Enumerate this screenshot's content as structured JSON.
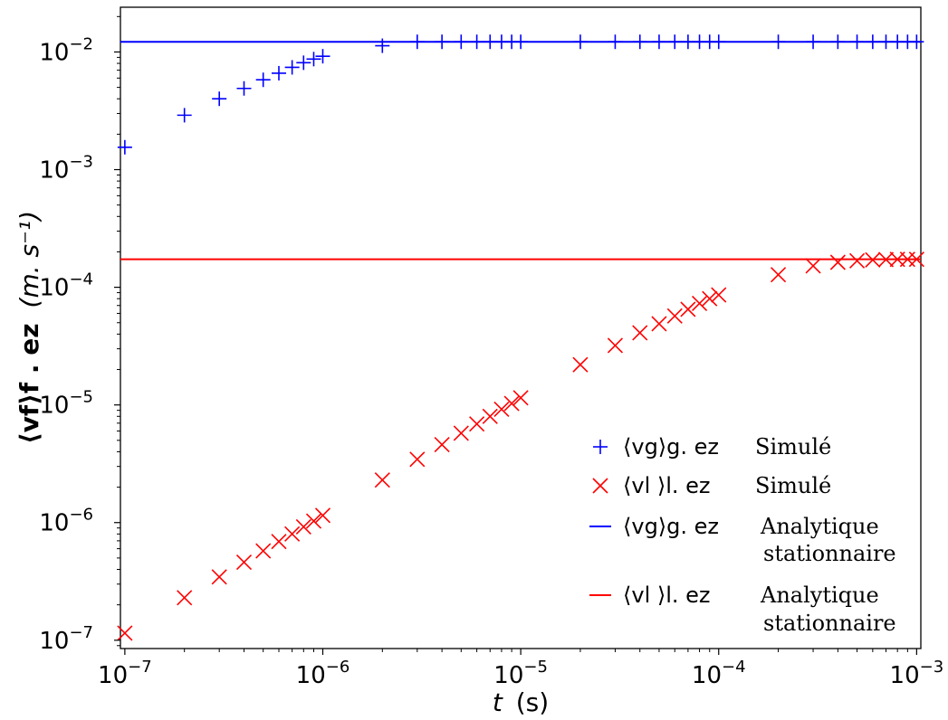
{
  "chart_data": {
    "type": "scatter",
    "xscale": "log",
    "yscale": "log",
    "xlim": [
      9.5e-08,
      0.00105
    ],
    "ylim": [
      8.5e-08,
      0.024
    ],
    "xlabel_var": "t",
    "xlabel_unit": "(s)",
    "ylabel_lhs": "⟨vf⟩f . ez",
    "ylabel_unit": "(m. s⁻¹)",
    "x_ticks": [
      {
        "value": 1e-07,
        "base": "10",
        "exp": "−7"
      },
      {
        "value": 1e-06,
        "base": "10",
        "exp": "−6"
      },
      {
        "value": 1e-05,
        "base": "10",
        "exp": "−5"
      },
      {
        "value": 0.0001,
        "base": "10",
        "exp": "−4"
      },
      {
        "value": 0.001,
        "base": "10",
        "exp": "−3"
      }
    ],
    "y_ticks": [
      {
        "value": 1e-07,
        "base": "10",
        "exp": "−7"
      },
      {
        "value": 1e-06,
        "base": "10",
        "exp": "−6"
      },
      {
        "value": 1e-05,
        "base": "10",
        "exp": "−5"
      },
      {
        "value": 0.0001,
        "base": "10",
        "exp": "−4"
      },
      {
        "value": 0.001,
        "base": "10",
        "exp": "−3"
      },
      {
        "value": 0.01,
        "base": "10",
        "exp": "−2"
      }
    ],
    "series": [
      {
        "name": "⟨vg⟩g . ez Simulé",
        "label_math": "⟨vg⟩g. ez",
        "label_text": "Simulé",
        "kind": "marker",
        "marker": "plus",
        "color": "#0000ff",
        "x": [
          1e-07,
          2e-07,
          3e-07,
          4e-07,
          5e-07,
          6e-07,
          7e-07,
          8e-07,
          9e-07,
          1e-06,
          2e-06,
          3e-06,
          4e-06,
          5e-06,
          6e-06,
          7e-06,
          8e-06,
          9e-06,
          1e-05,
          2e-05,
          3e-05,
          4e-05,
          5e-05,
          6e-05,
          7e-05,
          8e-05,
          9e-05,
          0.0001,
          0.0002,
          0.0003,
          0.0004,
          0.0005,
          0.0006,
          0.0007,
          0.0008,
          0.0009,
          0.001
        ],
        "y": [
          0.00155,
          0.0029,
          0.004,
          0.0049,
          0.0058,
          0.0066,
          0.0074,
          0.0081,
          0.0087,
          0.0092,
          0.0113,
          0.0122,
          0.0122,
          0.0122,
          0.0122,
          0.0122,
          0.0122,
          0.0122,
          0.0122,
          0.0122,
          0.0122,
          0.0122,
          0.0122,
          0.0122,
          0.0122,
          0.0122,
          0.0122,
          0.0122,
          0.0122,
          0.0122,
          0.0122,
          0.0122,
          0.0122,
          0.0122,
          0.0122,
          0.0122,
          0.0122
        ]
      },
      {
        "name": "⟨vl⟩l . ez Simulé",
        "label_math": "⟨vl ⟩l. ez",
        "label_text": "Simulé",
        "kind": "marker",
        "marker": "x",
        "color": "#ff0000",
        "x": [
          1e-07,
          2e-07,
          3e-07,
          4e-07,
          5e-07,
          6e-07,
          7e-07,
          8e-07,
          9e-07,
          1e-06,
          2e-06,
          3e-06,
          4e-06,
          5e-06,
          6e-06,
          7e-06,
          8e-06,
          9e-06,
          1e-05,
          2e-05,
          3e-05,
          4e-05,
          5e-05,
          6e-05,
          7e-05,
          8e-05,
          9e-05,
          0.0001,
          0.0002,
          0.0003,
          0.0004,
          0.0005,
          0.0006,
          0.0007,
          0.0008,
          0.0009,
          0.001
        ],
        "y": [
          1.15e-07,
          2.3e-07,
          3.45e-07,
          4.6e-07,
          5.75e-07,
          6.9e-07,
          8e-07,
          9.2e-07,
          1.03e-06,
          1.15e-06,
          2.3e-06,
          3.45e-06,
          4.6e-06,
          5.75e-06,
          6.9e-06,
          8e-06,
          9.2e-06,
          1.03e-05,
          1.15e-05,
          2.2e-05,
          3.2e-05,
          4.1e-05,
          4.9e-05,
          5.7e-05,
          6.5e-05,
          7.3e-05,
          8e-05,
          8.6e-05,
          0.000128,
          0.000152,
          0.000163,
          0.000168,
          0.000171,
          0.000172,
          0.000173,
          0.000173,
          0.000173
        ]
      },
      {
        "name": "⟨vg⟩g . ez Analytique stationnaire",
        "label_math": "⟨vg⟩g. ez",
        "label_text": "Analytique",
        "label_text2": "stationnaire",
        "kind": "hline",
        "color": "#0000ff",
        "y": 0.0122
      },
      {
        "name": "⟨vl⟩l . ez Analytique stationnaire",
        "label_math": "⟨vl ⟩l. ez",
        "label_text": "Analytique",
        "label_text2": "stationnaire",
        "kind": "hline",
        "color": "#ff0000",
        "y": 0.000173
      }
    ],
    "legend_position": "lower-right",
    "grid": false
  }
}
